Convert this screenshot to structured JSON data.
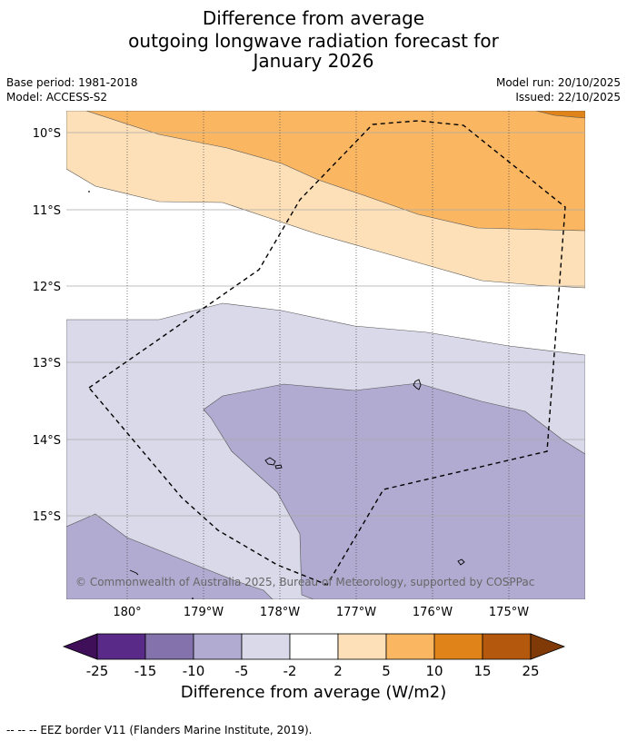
{
  "title": {
    "line1": "Difference from average",
    "line2": "outgoing longwave radiation forecast for",
    "line3": "January 2026"
  },
  "meta": {
    "base_period": "Base period: 1981-2018",
    "model": "Model: ACCESS-S2",
    "model_run": "Model run: 20/10/2025",
    "issued": "Issued: 22/10/2025"
  },
  "map": {
    "lat_labels": [
      "10°S",
      "11°S",
      "12°S",
      "13°S",
      "14°S",
      "15°S"
    ],
    "lon_labels": [
      "180°",
      "179°W",
      "178°W",
      "177°W",
      "176°W",
      "175°W"
    ],
    "copyright": "© Commonwealth of Australia 2025, Bureau of Meteorology, supported by COSPPac"
  },
  "colorbar": {
    "ticks": [
      "-25",
      "-15",
      "-10",
      "-5",
      "-2",
      "2",
      "5",
      "10",
      "15",
      "25"
    ],
    "colors": [
      "#3f0f5a",
      "#5a2a88",
      "#8372ab",
      "#b1abd1",
      "#d9d9ea",
      "#ffffff",
      "#fde0b8",
      "#fbb662",
      "#e08318",
      "#b3580c",
      "#7f3a08"
    ],
    "title": "Difference from average (W/m2)"
  },
  "footer": {
    "legend": "--  --  -- EEZ border V11 (Flanders Marine Institute, 2019)."
  }
}
